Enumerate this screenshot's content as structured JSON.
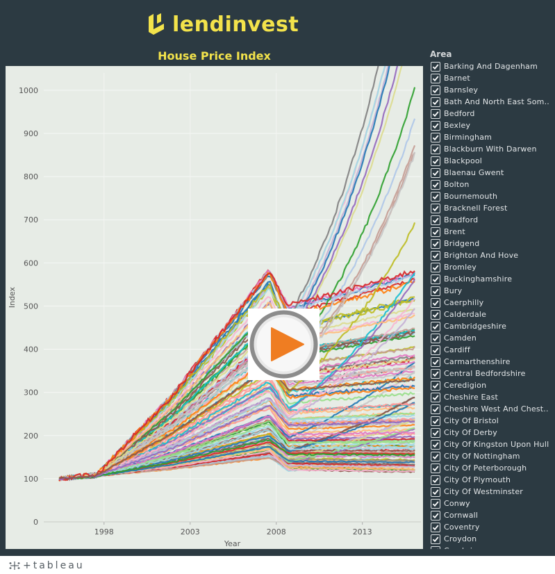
{
  "header": {
    "logo_text": "lendinvest",
    "brand_color": "#f3e34b"
  },
  "chart_data": {
    "type": "line",
    "title": "House Price Index",
    "xlabel": "Year",
    "ylabel": "Index",
    "x_ticks": [
      "1998",
      "2003",
      "2008",
      "2013"
    ],
    "y_ticks": [
      0,
      100,
      200,
      300,
      400,
      500,
      600,
      700,
      800,
      900,
      1000
    ],
    "xlim": [
      1995,
      2016.9
    ],
    "ylim": [
      0,
      1040
    ],
    "grid": true,
    "legend_placement": "right",
    "series_count_visible": 42
  },
  "legend": {
    "title": "Area",
    "items": [
      "Barking And Dagenham",
      "Barnet",
      "Barnsley",
      "Bath And North East Som..",
      "Bedford",
      "Bexley",
      "Birmingham",
      "Blackburn With Darwen",
      "Blackpool",
      "Blaenau Gwent",
      "Bolton",
      "Bournemouth",
      "Bracknell Forest",
      "Bradford",
      "Brent",
      "Bridgend",
      "Brighton And Hove",
      "Bromley",
      "Buckinghamshire",
      "Bury",
      "Caerphilly",
      "Calderdale",
      "Cambridgeshire",
      "Camden",
      "Cardiff",
      "Carmarthenshire",
      "Central Bedfordshire",
      "Ceredigion",
      "Cheshire East",
      "Cheshire West And Chest..",
      "City Of Bristol",
      "City Of Derby",
      "City Of Kingston Upon Hull",
      "City Of Nottingham",
      "City Of Peterborough",
      "City Of Plymouth",
      "City Of Westminster",
      "Conwy",
      "Cornwall",
      "Coventry",
      "Croydon",
      "Cumbria"
    ]
  },
  "footer": {
    "brand": "+tableau"
  },
  "palette": [
    "#1f77b4",
    "#ff7f0e",
    "#2ca02c",
    "#d62728",
    "#9467bd",
    "#8c564b",
    "#e377c2",
    "#7f7f7f",
    "#bcbd22",
    "#17becf",
    "#aec7e8",
    "#ffbb78",
    "#98df8a",
    "#ff9896",
    "#c5b0d5",
    "#c49c94",
    "#f7b6d2",
    "#c7c7c7",
    "#dbdb8d",
    "#9edae5"
  ]
}
